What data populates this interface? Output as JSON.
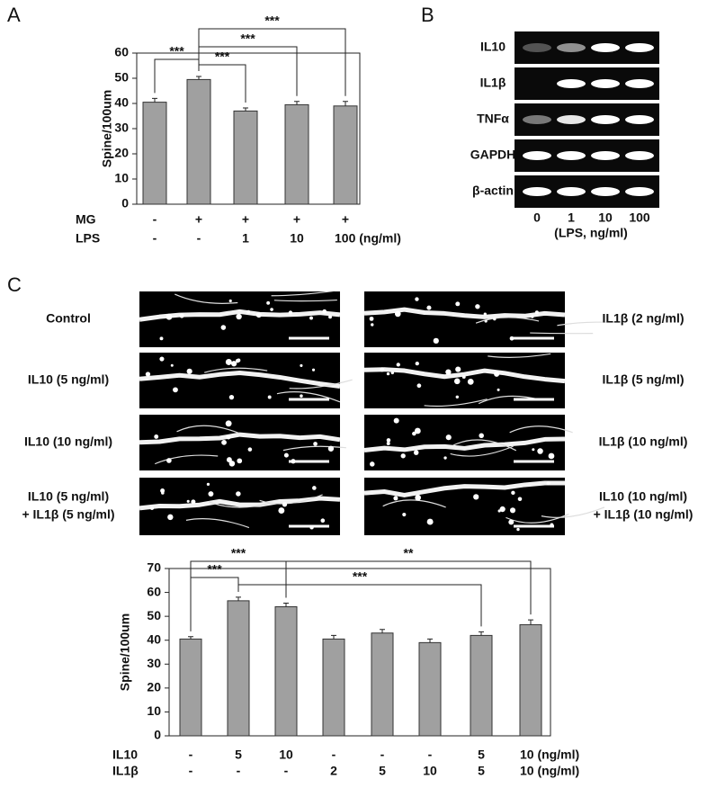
{
  "panel_labels": [
    "A",
    "B",
    "C"
  ],
  "chart_data": [
    {
      "type": "bar",
      "y_label": "Spine/100um",
      "values": [
        40.5,
        49.5,
        37,
        39.5,
        39
      ],
      "errors": [
        1.5,
        1.2,
        1.2,
        1.3,
        1.8
      ],
      "color": "#a0a0a0",
      "ylim": [
        0,
        60
      ],
      "yticks": [
        0,
        10,
        20,
        30,
        40,
        50,
        60
      ],
      "condition_rows": [
        {
          "name": "MG",
          "labels": [
            "-",
            "+",
            "+",
            "+",
            "+"
          ]
        },
        {
          "name": "LPS",
          "labels": [
            "-",
            "-",
            "1",
            "10",
            "100 (ng/ml)"
          ]
        }
      ],
      "annotations": [
        "***",
        "***",
        "***",
        "***"
      ]
    },
    {
      "type": "bar",
      "y_label": "Spine/100um",
      "values": [
        40.5,
        56.5,
        54,
        40.5,
        43,
        39,
        42,
        46.5
      ],
      "errors": [
        1,
        1.5,
        1.5,
        1.5,
        1.5,
        1.5,
        1.5,
        2
      ],
      "color": "#a0a0a0",
      "ylim": [
        0,
        70
      ],
      "yticks": [
        0,
        10,
        20,
        30,
        40,
        50,
        60,
        70
      ],
      "condition_rows": [
        {
          "name": "IL10",
          "labels": [
            "-",
            "5",
            "10",
            "-",
            "-",
            "-",
            "5",
            "10 (ng/ml)"
          ]
        },
        {
          "name": "IL1β",
          "labels": [
            "-",
            "-",
            "-",
            "2",
            "5",
            "10",
            "5",
            "10 (ng/ml)"
          ]
        }
      ],
      "annotations": [
        "***",
        "***",
        "***",
        "**"
      ]
    }
  ],
  "gel": {
    "genes": [
      "IL10",
      "IL1β",
      "TNFα",
      "GAPDH",
      "β-actin"
    ],
    "lanes": [
      "0",
      "1",
      "10",
      "100"
    ],
    "lane_title": "(LPS, ng/ml)"
  },
  "micrographs": {
    "left": [
      [
        "Control"
      ],
      [
        "IL10 (5 ng/ml)"
      ],
      [
        "IL10 (10 ng/ml)"
      ],
      [
        "IL10 (5 ng/ml)",
        "+ IL1β (5 ng/ml)"
      ]
    ],
    "right": [
      [
        "IL1β (2 ng/ml)"
      ],
      [
        "IL1β (5 ng/ml)"
      ],
      [
        "IL1β (10 ng/ml)"
      ],
      [
        "IL10 (10 ng/ml)",
        "+ IL1β (10 ng/ml)"
      ]
    ]
  }
}
